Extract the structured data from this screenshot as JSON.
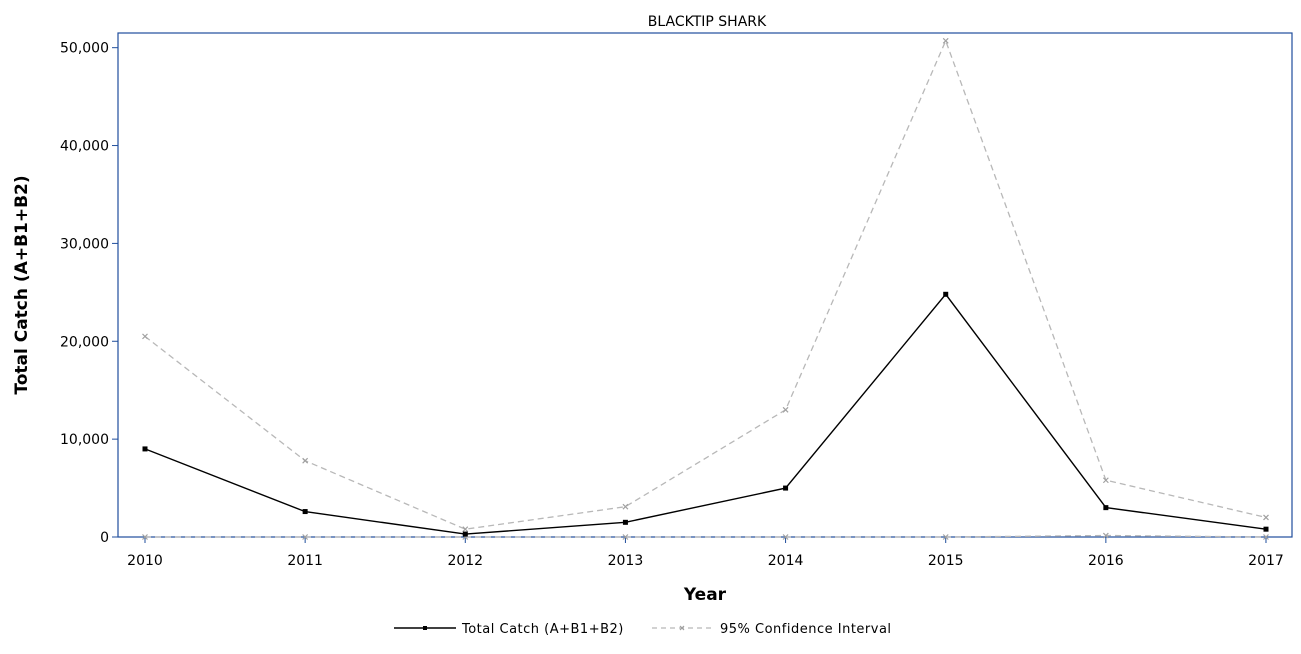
{
  "chart_data": {
    "type": "line",
    "title": "BLACKTIP SHARK",
    "xlabel": "Year",
    "ylabel": "Total Catch (A+B1+B2)",
    "x": [
      "2010",
      "2011",
      "2012",
      "2013",
      "2014",
      "2015",
      "2016",
      "2017"
    ],
    "ylim": [
      0,
      51500
    ],
    "yticks": [
      0,
      10000,
      20000,
      30000,
      40000,
      50000
    ],
    "ytick_labels": [
      "0",
      "10,000",
      "20,000",
      "30,000",
      "40,000",
      "50,000"
    ],
    "grid": false,
    "legend_position": "bottom",
    "series": [
      {
        "name": "Total Catch (A+B1+B2)",
        "style": "solid",
        "marker": "square",
        "color": "#000000",
        "values": [
          9000,
          2600,
          300,
          1500,
          5000,
          24800,
          3000,
          800
        ]
      },
      {
        "name": "95% Confidence Interval",
        "style": "dashed",
        "marker": "x",
        "color": "#b8b8b8",
        "values": [
          20500,
          7800,
          800,
          3100,
          13000,
          50700,
          5800,
          2000
        ]
      },
      {
        "name": "95% Confidence Interval",
        "style": "dashed",
        "marker": "x",
        "color": "#b8b8b8",
        "values": [
          0,
          0,
          0,
          0,
          0,
          0,
          150,
          0
        ]
      }
    ]
  }
}
